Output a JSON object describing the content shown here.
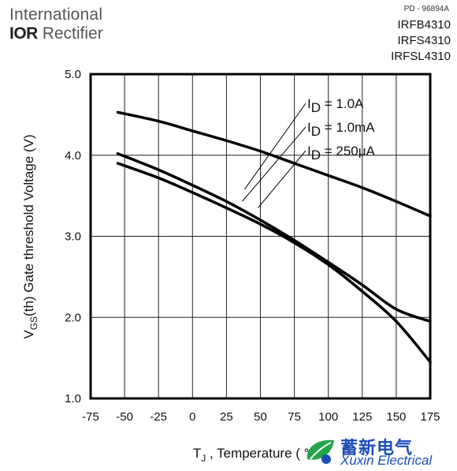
{
  "header": {
    "brand_line1": "International",
    "brand_logo": "IOR",
    "brand_line2_rest": "Rectifier",
    "doc_ref": "PD - 96894A",
    "part_numbers": [
      "IRFB4310",
      "IRFS4310",
      "IRFSL4310"
    ]
  },
  "watermark": {
    "cn_text": "蓄新电气",
    "en_text": "Xuxin Electrical",
    "icon": "leaf-logo-icon",
    "color": "#1a4db8"
  },
  "chart_data": {
    "type": "line",
    "title": "",
    "xlabel": {
      "main": "T",
      "sub": "J",
      "rest": " , Temperature ( °C )"
    },
    "ylabel": {
      "main": "V",
      "sub": "GS",
      "rest": "(th) Gate threshold Voltage (V)"
    },
    "xlim": [
      -75,
      175
    ],
    "ylim": [
      1.0,
      5.0
    ],
    "x_ticks": [
      -75,
      -50,
      -25,
      0,
      25,
      50,
      75,
      100,
      125,
      150,
      175
    ],
    "x_tick_labels": [
      "-75",
      "-50",
      "-25",
      "0",
      "25",
      "50",
      "75",
      "100",
      "125",
      "150",
      "175"
    ],
    "y_ticks": [
      1.0,
      2.0,
      3.0,
      4.0,
      5.0
    ],
    "y_tick_labels": [
      "1.0",
      "2.0",
      "3.0",
      "4.0",
      "5.0"
    ],
    "grid": true,
    "series": [
      {
        "name": "I_D = 1.0A",
        "label_main": "I",
        "label_sub": "D",
        "label_rest": " = 1.0A",
        "x": [
          -55,
          -25,
          0,
          25,
          50,
          75,
          100,
          125,
          150,
          175
        ],
        "y": [
          4.53,
          4.42,
          4.3,
          4.18,
          4.05,
          3.9,
          3.75,
          3.6,
          3.43,
          3.25
        ]
      },
      {
        "name": "I_D = 1.0mA",
        "label_main": "I",
        "label_sub": "D",
        "label_rest": " = 1.0mA",
        "x": [
          -55,
          -25,
          0,
          25,
          50,
          75,
          100,
          125,
          150,
          175
        ],
        "y": [
          4.02,
          3.82,
          3.63,
          3.43,
          3.2,
          2.95,
          2.68,
          2.4,
          2.1,
          1.95
        ]
      },
      {
        "name": "I_D = 250μA",
        "label_main": "I",
        "label_sub": "D",
        "label_rest": " = 250μA",
        "x": [
          -55,
          -25,
          0,
          25,
          50,
          75,
          100,
          125,
          150,
          175
        ],
        "y": [
          3.9,
          3.72,
          3.54,
          3.35,
          3.15,
          2.92,
          2.65,
          2.32,
          1.95,
          1.45
        ]
      }
    ]
  }
}
